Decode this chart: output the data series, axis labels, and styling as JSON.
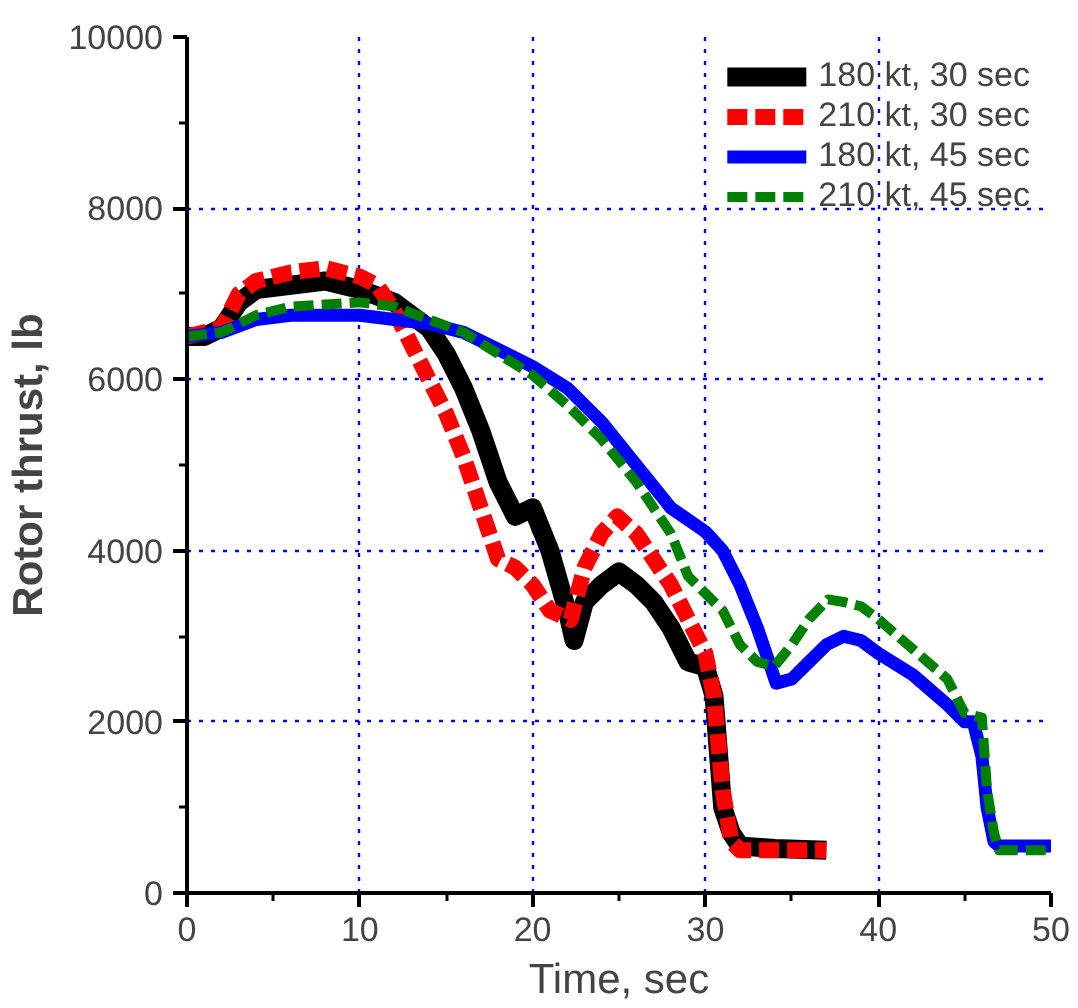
{
  "chart_data": {
    "type": "line",
    "xlabel": "Time, sec",
    "ylabel": "Rotor thrust, lb",
    "xlim": [
      0,
      50
    ],
    "ylim": [
      0,
      10000
    ],
    "xticks": [
      0,
      10,
      20,
      30,
      40,
      50
    ],
    "yticks": [
      0,
      2000,
      4000,
      6000,
      8000,
      10000
    ],
    "grid": true,
    "legend": "top right",
    "series": [
      {
        "name": "180 kt, 30 sec",
        "color": "#000000",
        "line_style": "solid",
        "x": [
          0,
          1,
          2,
          3,
          4,
          6,
          8,
          10,
          12,
          14,
          15,
          16,
          17,
          18,
          19,
          20,
          21,
          22,
          22.4,
          23,
          24,
          25,
          26,
          27,
          28,
          29,
          30,
          30.5,
          31,
          31.5,
          32,
          34,
          37
        ],
        "values": [
          6500,
          6500,
          6600,
          6900,
          7050,
          7100,
          7150,
          7050,
          6900,
          6600,
          6300,
          5900,
          5400,
          4800,
          4400,
          4500,
          4000,
          3300,
          2950,
          3400,
          3600,
          3750,
          3600,
          3400,
          3100,
          2700,
          2640,
          2300,
          1000,
          700,
          550,
          520,
          500
        ]
      },
      {
        "name": "210 kt, 30 sec",
        "color": "#ff0000",
        "line_style": "dashed",
        "x": [
          0,
          2,
          3,
          4,
          6,
          8,
          10,
          11,
          12,
          13,
          14,
          15,
          16,
          17,
          18,
          19,
          20,
          21,
          22.2,
          23,
          24,
          24.9,
          26,
          27,
          28,
          29,
          30,
          30.5,
          31,
          31.5,
          32,
          37
        ],
        "values": [
          6500,
          6600,
          7000,
          7150,
          7250,
          7300,
          7200,
          7100,
          6800,
          6400,
          6000,
          5600,
          5100,
          4500,
          3900,
          3800,
          3600,
          3300,
          3190,
          3800,
          4200,
          4400,
          4200,
          3900,
          3600,
          3200,
          2800,
          2300,
          1200,
          600,
          500,
          500
        ]
      },
      {
        "name": "180 kt, 45 sec",
        "color": "#0000ff",
        "line_style": "solid",
        "x": [
          0,
          2,
          4,
          6,
          10,
          14,
          16,
          18,
          20,
          22,
          24,
          26,
          28,
          30,
          31,
          32,
          33,
          34.1,
          35,
          36,
          37,
          38,
          39,
          40,
          42,
          44,
          45,
          45.5,
          46,
          46.3,
          46.7,
          47,
          50
        ],
        "values": [
          6500,
          6550,
          6700,
          6750,
          6750,
          6650,
          6550,
          6350,
          6150,
          5900,
          5500,
          5000,
          4500,
          4220,
          4000,
          3600,
          3100,
          2450,
          2500,
          2700,
          2900,
          3000,
          2950,
          2800,
          2550,
          2200,
          2000,
          2000,
          1600,
          1000,
          600,
          550,
          550
        ]
      },
      {
        "name": "210 kt, 45 sec",
        "color": "#008000",
        "line_style": "dashed",
        "x": [
          0,
          2,
          4,
          6,
          10,
          12,
          14,
          16,
          18,
          20,
          22,
          24,
          26,
          28,
          29,
          30,
          31,
          32,
          33,
          34,
          35,
          36,
          37.1,
          38,
          39,
          40,
          42,
          44,
          45,
          46,
          46.3,
          46.7,
          47,
          50
        ],
        "values": [
          6500,
          6550,
          6750,
          6850,
          6900,
          6850,
          6700,
          6550,
          6300,
          6050,
          5700,
          5300,
          4800,
          4200,
          3700,
          3500,
          3300,
          2900,
          2700,
          2650,
          2900,
          3200,
          3430,
          3400,
          3350,
          3200,
          2850,
          2500,
          2100,
          2050,
          1200,
          700,
          500,
          500
        ]
      }
    ]
  }
}
